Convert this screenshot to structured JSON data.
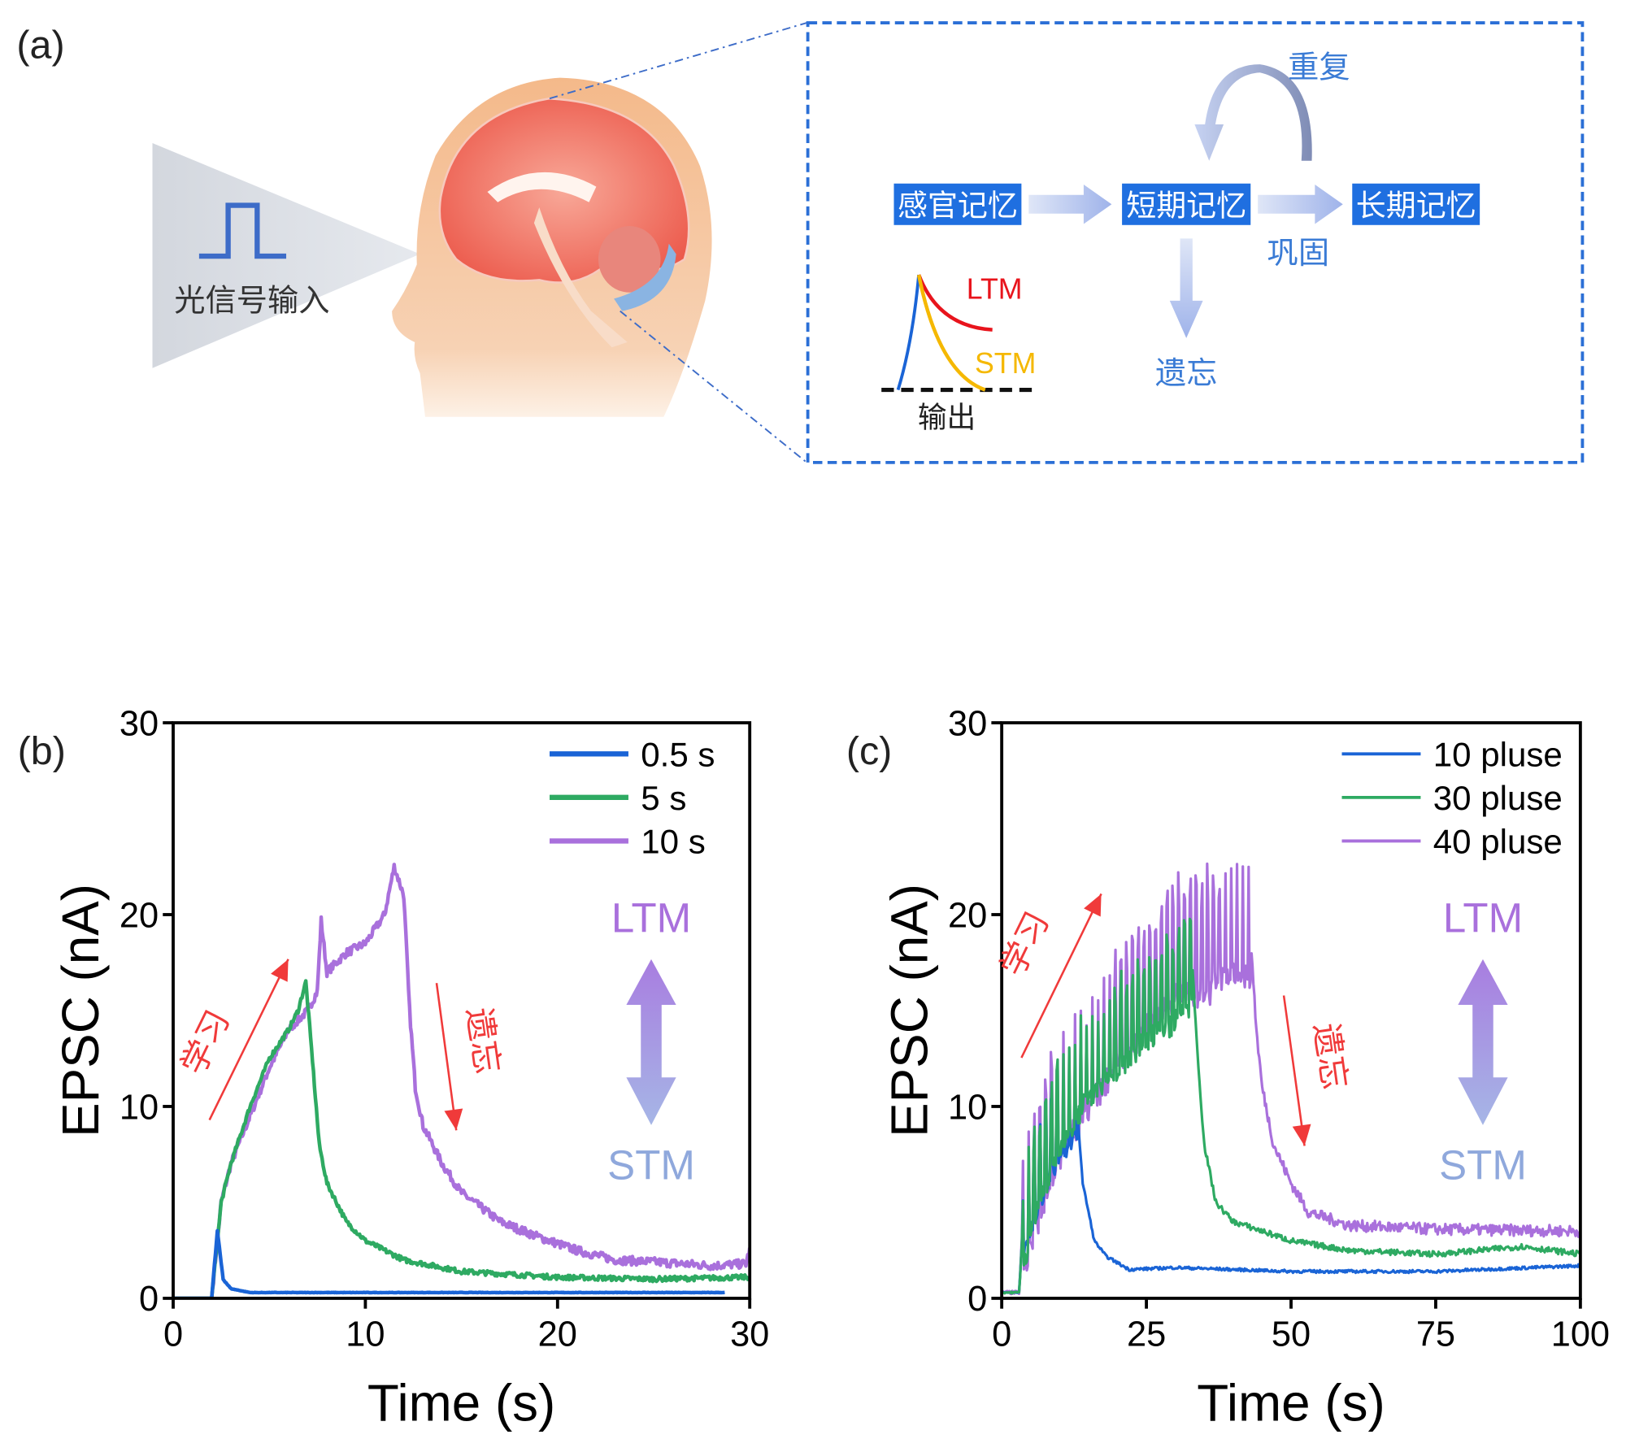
{
  "panel_a": {
    "label": "(a)",
    "input_label": "光信号输入",
    "flow": {
      "sensory": "感官记忆",
      "short_term": "短期记忆",
      "long_term": "长期记忆",
      "repeat": "重复",
      "consolidate": "巩固",
      "forget": "遗忘"
    },
    "mini_chart": {
      "ltm": "LTM",
      "stm": "STM",
      "output": "输出"
    },
    "colors": {
      "box": "#1f6fe0",
      "text_blue": "#3a7bd5",
      "ltm": "#e8141c",
      "stm": "#f5b800"
    }
  },
  "chart_data": [
    {
      "id": "b",
      "panel_label": "(b)",
      "type": "line",
      "xlabel": "Time (s)",
      "ylabel": "EPSC (nA)",
      "xlim": [
        0,
        30
      ],
      "ylim": [
        0,
        30
      ],
      "xticks": [
        "0",
        "10",
        "20",
        "30"
      ],
      "yticks": [
        "0",
        "10",
        "20",
        "30"
      ],
      "xtick_values": [
        0,
        10,
        20,
        30
      ],
      "ytick_values": [
        0,
        10,
        20,
        30
      ],
      "legend": "top-right",
      "annotations": {
        "learn": "学习",
        "forget": "遗忘",
        "ltm": "LTM",
        "stm": "STM"
      },
      "series": [
        {
          "name": "10 s",
          "color": "#a970dc",
          "points": [
            [
              0,
              0
            ],
            [
              2,
              0
            ],
            [
              2.5,
              5
            ],
            [
              3,
              7
            ],
            [
              4,
              9.5
            ],
            [
              5,
              12
            ],
            [
              6,
              14
            ],
            [
              7,
              15
            ],
            [
              7.5,
              16
            ],
            [
              7.7,
              19.7
            ],
            [
              8,
              17
            ],
            [
              9,
              18
            ],
            [
              10,
              18.5
            ],
            [
              11,
              20
            ],
            [
              11.5,
              22.5
            ],
            [
              12,
              21
            ],
            [
              12.3,
              15
            ],
            [
              12.6,
              11
            ],
            [
              13,
              9
            ],
            [
              14,
              7
            ],
            [
              15,
              5.5
            ],
            [
              17,
              4
            ],
            [
              19,
              3.2
            ],
            [
              21,
              2.5
            ],
            [
              23,
              2
            ],
            [
              25,
              1.9
            ],
            [
              28,
              1.7
            ],
            [
              29.8,
              1.8
            ],
            [
              30,
              2.5
            ]
          ],
          "noise": 0.45
        },
        {
          "name": "5 s",
          "color": "#2eaa62",
          "points": [
            [
              0,
              0
            ],
            [
              2,
              0
            ],
            [
              2.5,
              5
            ],
            [
              3,
              7
            ],
            [
              4,
              10
            ],
            [
              5,
              12.5
            ],
            [
              6,
              14
            ],
            [
              6.5,
              15
            ],
            [
              6.9,
              16.5
            ],
            [
              7.2,
              13
            ],
            [
              7.6,
              8
            ],
            [
              8,
              6
            ],
            [
              9,
              4
            ],
            [
              10,
              3
            ],
            [
              12,
              2
            ],
            [
              15,
              1.4
            ],
            [
              20,
              1.1
            ],
            [
              25,
              1
            ],
            [
              30,
              1.1
            ]
          ],
          "noise": 0.25
        },
        {
          "name": "0.5 s",
          "color": "#1a64d6",
          "points": [
            [
              0,
              0
            ],
            [
              2,
              0
            ],
            [
              2.3,
              3.5
            ],
            [
              2.6,
              1
            ],
            [
              3,
              0.5
            ],
            [
              4,
              0.3
            ],
            [
              28.7,
              0.3
            ]
          ],
          "noise": 0.06
        }
      ],
      "legend_order": [
        "0.5 s",
        "5 s",
        "10 s"
      ]
    },
    {
      "id": "c",
      "panel_label": "(c)",
      "type": "line",
      "xlabel": "Time (s)",
      "ylabel": "EPSC (nA)",
      "xlim": [
        0,
        100
      ],
      "ylim": [
        0,
        30
      ],
      "xticks": [
        "0",
        "25",
        "50",
        "75",
        "100"
      ],
      "yticks": [
        "0",
        "10",
        "20",
        "30"
      ],
      "xtick_values": [
        0,
        25,
        50,
        75,
        100
      ],
      "ytick_values": [
        0,
        10,
        20,
        30
      ],
      "legend": "top-right",
      "annotations": {
        "learn": "学习",
        "forget": "遗忘",
        "ltm": "LTM",
        "stm": "STM"
      },
      "series": [
        {
          "name": "40 pluse",
          "color": "#a970dc",
          "points": [
            [
              0,
              0.3
            ],
            [
              3,
              0.3
            ],
            [
              3.5,
              3
            ],
            [
              6,
              6
            ],
            [
              10,
              9.5
            ],
            [
              15,
              12
            ],
            [
              20,
              14
            ],
            [
              25,
              16
            ],
            [
              30,
              18
            ],
            [
              35,
              18
            ],
            [
              40,
              19
            ],
            [
              43,
              19
            ],
            [
              44,
              14
            ],
            [
              45,
              11
            ],
            [
              47,
              8
            ],
            [
              50,
              6
            ],
            [
              53,
              4.5
            ],
            [
              60,
              3.8
            ],
            [
              75,
              3.6
            ],
            [
              100,
              3.5
            ]
          ],
          "pulse_window": [
            3.5,
            43
          ],
          "ripple": 4.5,
          "noise": 0.6
        },
        {
          "name": "10 pluse",
          "color": "#1a64d6",
          "points": [
            [
              0,
              0.3
            ],
            [
              3,
              0.3
            ],
            [
              3.5,
              3
            ],
            [
              5,
              5
            ],
            [
              8,
              7.5
            ],
            [
              11,
              9
            ],
            [
              13,
              10
            ],
            [
              14,
              6
            ],
            [
              16,
              3
            ],
            [
              18,
              2.2
            ],
            [
              22,
              1.5
            ],
            [
              30,
              1.6
            ],
            [
              50,
              1.4
            ],
            [
              75,
              1.4
            ],
            [
              100,
              1.7
            ]
          ],
          "pulse_window": [
            3.5,
            13
          ],
          "ripple": 3,
          "noise": 0.15
        },
        {
          "name": "30 pluse",
          "color": "#2eaa62",
          "points": [
            [
              0,
              0.3
            ],
            [
              3,
              0.3
            ],
            [
              3.5,
              3
            ],
            [
              6,
              6
            ],
            [
              10,
              9.5
            ],
            [
              15,
              12
            ],
            [
              20,
              13.5
            ],
            [
              25,
              15
            ],
            [
              30,
              16
            ],
            [
              33,
              17
            ],
            [
              34,
              12
            ],
            [
              35,
              8
            ],
            [
              37,
              5
            ],
            [
              40,
              4
            ],
            [
              50,
              3
            ],
            [
              60,
              2.5
            ],
            [
              75,
              2.3
            ],
            [
              90,
              2.7
            ],
            [
              100,
              2.3
            ]
          ],
          "pulse_window": [
            3.5,
            33
          ],
          "ripple": 3.5,
          "noise": 0.3
        }
      ],
      "legend_order": [
        "10 pluse",
        "30 pluse",
        "40 pluse"
      ]
    }
  ]
}
